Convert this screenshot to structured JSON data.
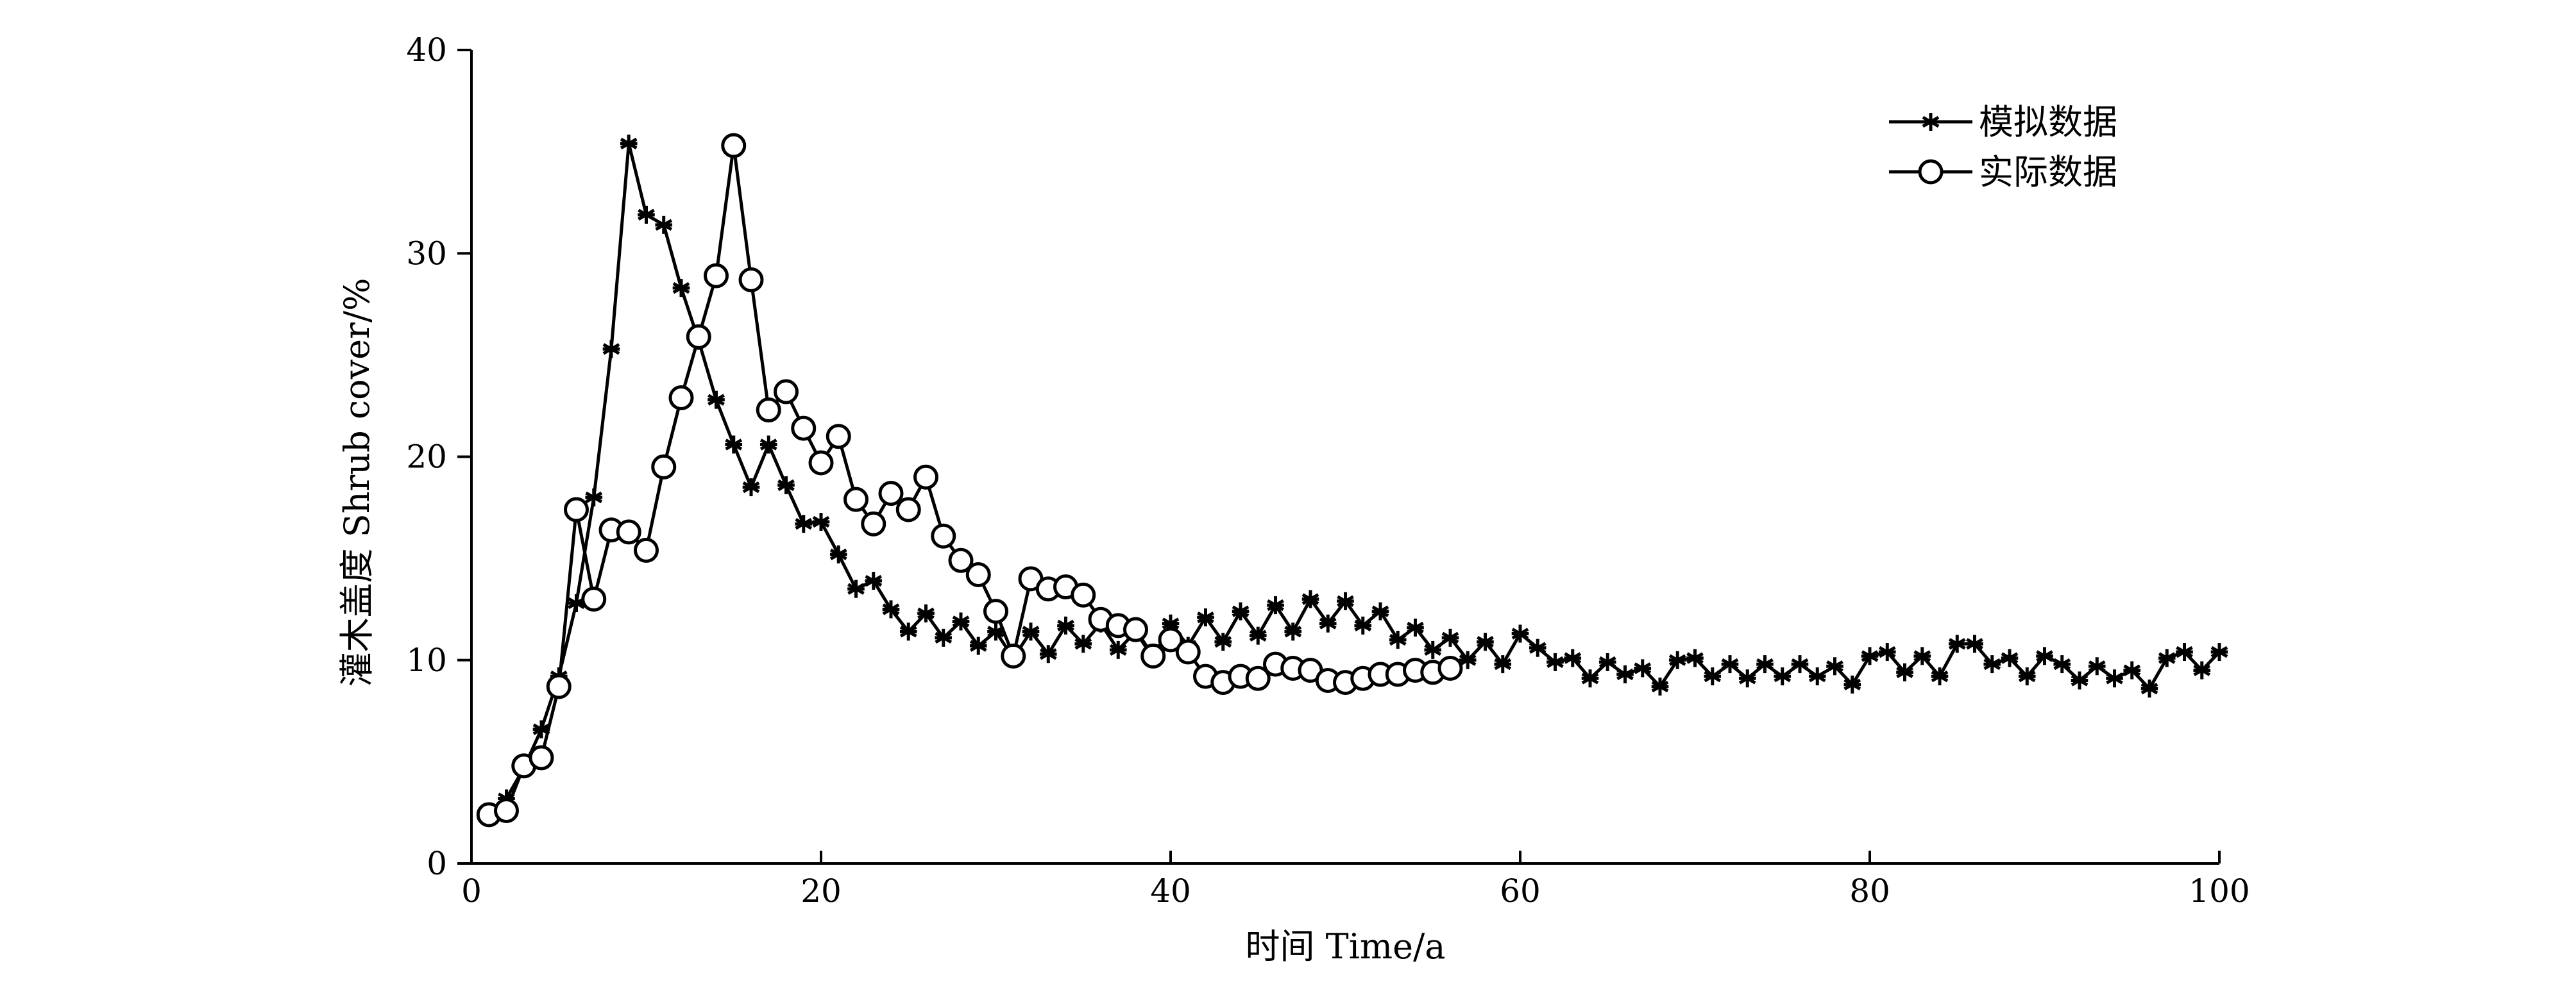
{
  "chart_data": {
    "type": "line",
    "xlabel": "时间 Time/a",
    "ylabel": "灌木盖度 Shrub cover/%",
    "xlim": [
      0,
      100
    ],
    "ylim": [
      0,
      40
    ],
    "x_ticks": [
      "0",
      "20",
      "40",
      "60",
      "80",
      "100"
    ],
    "y_ticks": [
      "0",
      "10",
      "20",
      "30",
      "40"
    ],
    "grid": false,
    "legend_position": "top-right",
    "series": [
      {
        "name": "模拟数据",
        "marker": "asterisk",
        "x": [
          1,
          2,
          3,
          4,
          5,
          6,
          7,
          8,
          9,
          10,
          11,
          12,
          13,
          14,
          15,
          16,
          17,
          18,
          19,
          20,
          21,
          22,
          23,
          24,
          25,
          26,
          27,
          28,
          29,
          30,
          31,
          32,
          33,
          34,
          35,
          36,
          37,
          38,
          39,
          40,
          41,
          42,
          43,
          44,
          45,
          46,
          47,
          48,
          49,
          50,
          51,
          52,
          53,
          54,
          55,
          56,
          57,
          58,
          59,
          60,
          61,
          62,
          63,
          64,
          65,
          66,
          67,
          68,
          69,
          70,
          71,
          72,
          73,
          74,
          75,
          76,
          77,
          78,
          79,
          80,
          81,
          82,
          83,
          84,
          85,
          86,
          87,
          88,
          89,
          90,
          91,
          92,
          93,
          94,
          95,
          96,
          97,
          98,
          99,
          100
        ],
        "values": [
          2.4,
          3.2,
          4.7,
          6.6,
          9.2,
          12.8,
          18.0,
          25.3,
          35.4,
          31.9,
          31.4,
          28.3,
          25.7,
          22.8,
          20.6,
          18.5,
          20.6,
          18.6,
          16.7,
          16.8,
          15.2,
          13.5,
          13.9,
          12.5,
          11.4,
          12.3,
          11.1,
          11.9,
          10.7,
          11.4,
          10.1,
          11.4,
          10.3,
          11.7,
          10.8,
          11.8,
          10.5,
          11.4,
          10.1,
          11.8,
          10.7,
          12.1,
          10.9,
          12.4,
          11.2,
          12.7,
          11.4,
          13.0,
          11.8,
          12.9,
          11.7,
          12.4,
          11.0,
          11.6,
          10.5,
          11.1,
          10.0,
          10.9,
          9.8,
          11.3,
          10.6,
          9.9,
          10.1,
          9.1,
          9.9,
          9.3,
          9.6,
          8.7,
          10.0,
          10.1,
          9.2,
          9.8,
          9.1,
          9.8,
          9.2,
          9.8,
          9.2,
          9.7,
          8.8,
          10.2,
          10.4,
          9.4,
          10.2,
          9.2,
          10.8,
          10.8,
          9.8,
          10.1,
          9.2,
          10.2,
          9.8,
          9.0,
          9.7,
          9.1,
          9.5,
          8.6,
          10.1,
          10.4,
          9.5,
          10.4
        ]
      },
      {
        "name": "实际数据",
        "marker": "circle",
        "x": [
          1,
          2,
          3,
          4,
          5,
          6,
          7,
          8,
          9,
          10,
          11,
          12,
          13,
          14,
          15,
          16,
          17,
          18,
          19,
          20,
          21,
          22,
          23,
          24,
          25,
          26,
          27,
          28,
          29,
          30,
          31,
          32,
          33,
          34,
          35,
          36,
          37,
          38,
          39,
          40,
          41,
          42,
          43,
          44,
          45,
          46,
          47,
          48,
          49,
          50,
          51,
          52,
          53,
          54,
          55,
          56
        ],
        "values": [
          2.4,
          2.6,
          4.8,
          5.2,
          8.7,
          17.4,
          13.0,
          16.4,
          16.3,
          15.4,
          19.5,
          22.9,
          25.9,
          28.9,
          35.3,
          28.7,
          22.3,
          23.2,
          21.4,
          19.7,
          21.0,
          17.9,
          16.7,
          18.2,
          17.4,
          19.0,
          16.1,
          14.9,
          14.2,
          12.4,
          10.2,
          14.0,
          13.5,
          13.6,
          13.2,
          12.0,
          11.7,
          11.5,
          10.2,
          11.0,
          10.4,
          9.2,
          8.9,
          9.2,
          9.1,
          9.8,
          9.6,
          9.5,
          9.0,
          8.9,
          9.1,
          9.3,
          9.3,
          9.5,
          9.4,
          9.6
        ]
      }
    ]
  }
}
